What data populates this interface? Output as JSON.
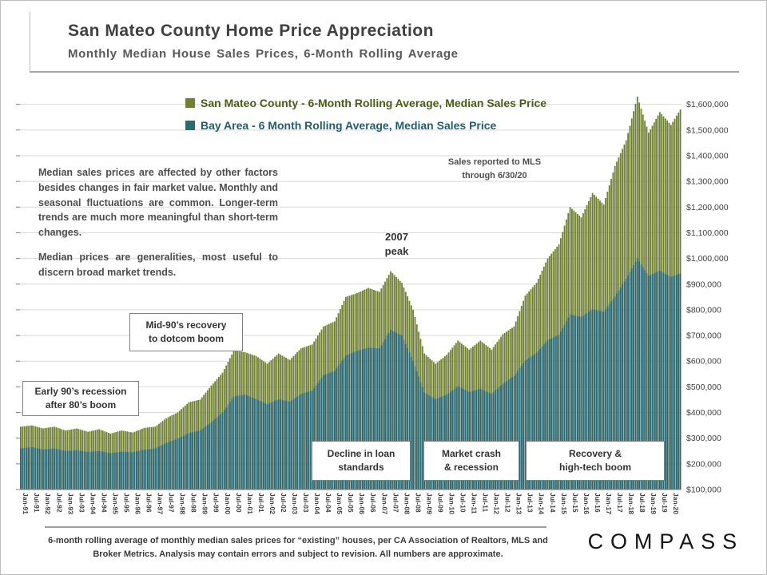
{
  "chart_data": {
    "type": "bar",
    "title": "San Mateo County Home Price Appreciation",
    "subtitle": "Monthly Median House Sales Prices, 6-Month Rolling Average",
    "x_tick_labels": [
      "Jan-91",
      "Jul-91",
      "Jan-92",
      "Jul-92",
      "Jan-93",
      "Jul-93",
      "Jan-94",
      "Jul-94",
      "Jan-95",
      "Jul-95",
      "Jan-96",
      "Jul-96",
      "Jan-97",
      "Jul-97",
      "Jan-98",
      "Jul-98",
      "Jan-99",
      "Jul-99",
      "Jan-00",
      "Jul-00",
      "Jan-01",
      "Jul-01",
      "Jan-02",
      "Jul-02",
      "Jan-03",
      "Jul-03",
      "Jan-04",
      "Jul-04",
      "Jan-05",
      "Jul-05",
      "Jan-06",
      "Jul-06",
      "Jan-07",
      "Jul-07",
      "Jan-08",
      "Jul-08",
      "Jan-09",
      "Jul-09",
      "Jan-10",
      "Jul-10",
      "Jan-11",
      "Jul-11",
      "Jan-12",
      "Jul-12",
      "Jan-13",
      "Jul-13",
      "Jan-14",
      "Jul-14",
      "Jan-15",
      "Jul-15",
      "Jan-16",
      "Jul-16",
      "Jan-17",
      "Jul-17",
      "Jan-18",
      "Jul-18",
      "Jan-19",
      "Jul-19",
      "Jan-20"
    ],
    "months_total": 354,
    "anchor_interval_months": 6,
    "ylim": [
      100000,
      1655000
    ],
    "ytick_interval": 100000,
    "ytick_labels": [
      "$100,000",
      "$200,000",
      "$300,000",
      "$400,000",
      "$500,000",
      "$600,000",
      "$700,000",
      "$800,000",
      "$900,000",
      "$1,000,000",
      "$1,100,000",
      "$1,200,000",
      "$1,300,000",
      "$1,400,000",
      "$1,500,000",
      "$1,600,000"
    ],
    "grid": "horizontal",
    "legend_position": "top-left",
    "series": [
      {
        "name": "San Mateo County - 6-Month Rolling Average, Median Sales Price",
        "color": "#6f8033",
        "semiannual_values": [
          345000,
          350000,
          338000,
          345000,
          330000,
          338000,
          325000,
          335000,
          318000,
          330000,
          322000,
          340000,
          345000,
          378000,
          400000,
          440000,
          450000,
          505000,
          555000,
          640000,
          635000,
          620000,
          590000,
          630000,
          605000,
          650000,
          665000,
          735000,
          755000,
          850000,
          865000,
          885000,
          870000,
          950000,
          905000,
          800000,
          630000,
          590000,
          625000,
          680000,
          645000,
          680000,
          645000,
          705000,
          735000,
          855000,
          905000,
          1000000,
          1055000,
          1200000,
          1160000,
          1255000,
          1210000,
          1360000,
          1460000,
          1630000,
          1490000,
          1570000,
          1520000,
          1580000
        ]
      },
      {
        "name": "Bay Area - 6 Month Rolling Average, Median Sales Price",
        "color": "#2e6a76",
        "semiannual_values": [
          260000,
          265000,
          256000,
          260000,
          250000,
          253000,
          246000,
          250000,
          242000,
          247000,
          245000,
          255000,
          260000,
          282000,
          298000,
          320000,
          330000,
          362000,
          400000,
          462000,
          470000,
          452000,
          432000,
          452000,
          442000,
          472000,
          485000,
          545000,
          562000,
          622000,
          640000,
          652000,
          650000,
          722000,
          700000,
          600000,
          478000,
          452000,
          470000,
          502000,
          480000,
          492000,
          472000,
          512000,
          542000,
          602000,
          632000,
          682000,
          702000,
          782000,
          772000,
          802000,
          792000,
          852000,
          922000,
          1000000,
          932000,
          952000,
          928000,
          942000
        ]
      }
    ],
    "annotations": {
      "note1": "Median sales prices are affected by other factors besides changes in fair market value. Monthly and seasonal fluctuations are common. Longer-term trends are much more meaningful than short-term changes.",
      "note2": "Median prices are generalities, most useful to discern broad market trends.",
      "mls_note": "Sales reported to MLS\nthrough 6/30/20",
      "peak_2007": "2007\npeak",
      "box_early_90s": "Early 90’s recession\nafter 80’s boom",
      "box_mid_90s": "Mid-90’s recovery\nto dotcom boom",
      "box_loan": "Decline in loan\nstandards",
      "box_crash": "Market crash\n& recession",
      "box_recovery": "Recovery &\nhigh-tech boom"
    }
  },
  "footer": {
    "disclaimer": "6-month rolling average of monthly median sales prices for “existing” houses, per CA Association of Realtors, MLS and Broker Metrics.  Analysis may contain errors and subject to revision.  All numbers are approximate.",
    "brand": "COMPASS"
  }
}
